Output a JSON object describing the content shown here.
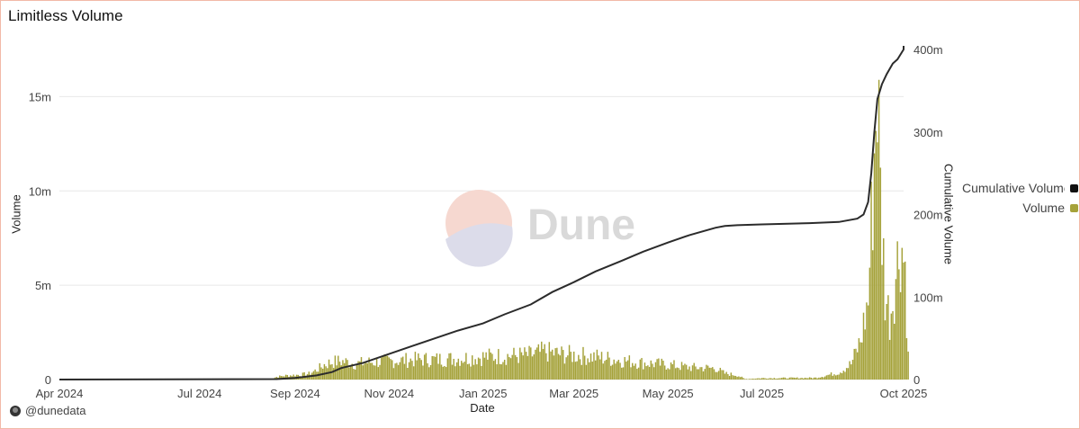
{
  "header": {
    "title": "Limitless Volume"
  },
  "watermark": {
    "text": "Dune"
  },
  "footer": {
    "handle": "@dunedata",
    "avatar_icon": "dune-logo-icon"
  },
  "colors": {
    "volume": "#a5a23a",
    "cumulative": "#2b2b2b",
    "grid": "#e8e8e8",
    "frame": "#f2b9a8"
  },
  "chart_data": {
    "type": "bar",
    "xlabel": "Date",
    "x_ticks": [
      "Apr 2024",
      "Jul 2024",
      "Sep 2024",
      "Nov 2024",
      "Jan 2025",
      "Mar 2025",
      "May 2025",
      "Jul 2025",
      "Oct 2025"
    ],
    "x_tick_dates": [
      "2024-04-01",
      "2024-07-01",
      "2024-09-01",
      "2024-11-01",
      "2025-01-01",
      "2025-03-01",
      "2025-05-01",
      "2025-07-01",
      "2025-10-01"
    ],
    "x_range": [
      "2024-04-01",
      "2025-10-01"
    ],
    "y_left": {
      "label": "Volume",
      "range": [
        0,
        17500000
      ],
      "ticks": [
        0,
        5000000,
        10000000,
        15000000
      ],
      "tick_labels": [
        "0",
        "5m",
        "10m",
        "15m"
      ]
    },
    "y_right": {
      "label": "Cumulative Volume",
      "range": [
        0,
        400000000
      ],
      "ticks": [
        0,
        100000000,
        200000000,
        300000000,
        400000000
      ],
      "tick_labels": [
        "0",
        "100m",
        "200m",
        "300m",
        "400m"
      ]
    },
    "legend": {
      "position": "right",
      "items": [
        "Cumulative Volume",
        "Volume"
      ]
    },
    "grid": true,
    "series": [
      {
        "name": "Volume",
        "type": "bar",
        "axis": "left",
        "points": [
          [
            "2024-08-15",
            0
          ],
          [
            "2024-08-20",
            150000
          ],
          [
            "2024-08-25",
            220000
          ],
          [
            "2024-08-31",
            250000
          ],
          [
            "2024-09-05",
            280000
          ],
          [
            "2024-09-10",
            330000
          ],
          [
            "2024-09-15",
            550000
          ],
          [
            "2024-09-20",
            850000
          ],
          [
            "2024-09-25",
            1000000
          ],
          [
            "2024-09-30",
            1050000
          ],
          [
            "2024-10-05",
            1000000
          ],
          [
            "2024-10-10",
            900000
          ],
          [
            "2024-10-20",
            1000000
          ],
          [
            "2024-10-31",
            1050000
          ],
          [
            "2024-11-10",
            1100000
          ],
          [
            "2024-11-20",
            1150000
          ],
          [
            "2024-12-01",
            1150000
          ],
          [
            "2024-12-15",
            1200000
          ],
          [
            "2025-01-01",
            1300000
          ],
          [
            "2025-01-15",
            1350000
          ],
          [
            "2025-02-01",
            1400000
          ],
          [
            "2025-02-10",
            1600000
          ],
          [
            "2025-02-20",
            1450000
          ],
          [
            "2025-03-01",
            1400000
          ],
          [
            "2025-03-15",
            1300000
          ],
          [
            "2025-04-01",
            1100000
          ],
          [
            "2025-04-15",
            950000
          ],
          [
            "2025-05-01",
            850000
          ],
          [
            "2025-05-15",
            700000
          ],
          [
            "2025-06-01",
            650000
          ],
          [
            "2025-06-07",
            350000
          ],
          [
            "2025-06-15",
            250000
          ],
          [
            "2025-06-20",
            30000
          ],
          [
            "2025-07-01",
            80000
          ],
          [
            "2025-07-20",
            90000
          ],
          [
            "2025-08-05",
            100000
          ],
          [
            "2025-08-20",
            400000
          ],
          [
            "2025-08-28",
            900000
          ],
          [
            "2025-09-03",
            2200000
          ],
          [
            "2025-09-08",
            4500000
          ],
          [
            "2025-09-12",
            13000000
          ],
          [
            "2025-09-14",
            17500000
          ],
          [
            "2025-09-16",
            10500000
          ],
          [
            "2025-09-19",
            5000000
          ],
          [
            "2025-09-22",
            3500000
          ],
          [
            "2025-09-26",
            6000000
          ],
          [
            "2025-09-29",
            8100000
          ],
          [
            "2025-10-02",
            6500000
          ],
          [
            "2025-10-04",
            1300000
          ]
        ]
      },
      {
        "name": "Cumulative Volume",
        "type": "line",
        "axis": "right",
        "points": [
          [
            "2024-04-01",
            0
          ],
          [
            "2024-08-20",
            500000
          ],
          [
            "2024-09-01",
            2000000
          ],
          [
            "2024-09-15",
            5000000
          ],
          [
            "2024-09-25",
            9000000
          ],
          [
            "2024-10-01",
            14000000
          ],
          [
            "2024-10-15",
            20000000
          ],
          [
            "2024-11-01",
            31000000
          ],
          [
            "2024-11-15",
            40000000
          ],
          [
            "2024-12-01",
            50000000
          ],
          [
            "2024-12-15",
            59000000
          ],
          [
            "2025-01-01",
            68000000
          ],
          [
            "2025-01-15",
            79000000
          ],
          [
            "2025-02-01",
            91000000
          ],
          [
            "2025-02-15",
            106000000
          ],
          [
            "2025-03-01",
            118000000
          ],
          [
            "2025-03-15",
            131000000
          ],
          [
            "2025-04-01",
            144000000
          ],
          [
            "2025-04-15",
            155000000
          ],
          [
            "2025-05-01",
            166000000
          ],
          [
            "2025-05-15",
            175000000
          ],
          [
            "2025-06-01",
            184000000
          ],
          [
            "2025-06-07",
            186000000
          ],
          [
            "2025-06-15",
            187000000
          ],
          [
            "2025-07-01",
            188000000
          ],
          [
            "2025-08-01",
            189500000
          ],
          [
            "2025-08-20",
            191000000
          ],
          [
            "2025-09-01",
            195000000
          ],
          [
            "2025-09-05",
            200000000
          ],
          [
            "2025-09-08",
            215000000
          ],
          [
            "2025-09-10",
            250000000
          ],
          [
            "2025-09-12",
            300000000
          ],
          [
            "2025-09-14",
            340000000
          ],
          [
            "2025-09-17",
            358000000
          ],
          [
            "2025-09-20",
            370000000
          ],
          [
            "2025-09-24",
            383000000
          ],
          [
            "2025-09-27",
            388000000
          ],
          [
            "2025-10-01",
            400000000
          ],
          [
            "2025-10-04",
            415000000
          ]
        ]
      }
    ]
  }
}
